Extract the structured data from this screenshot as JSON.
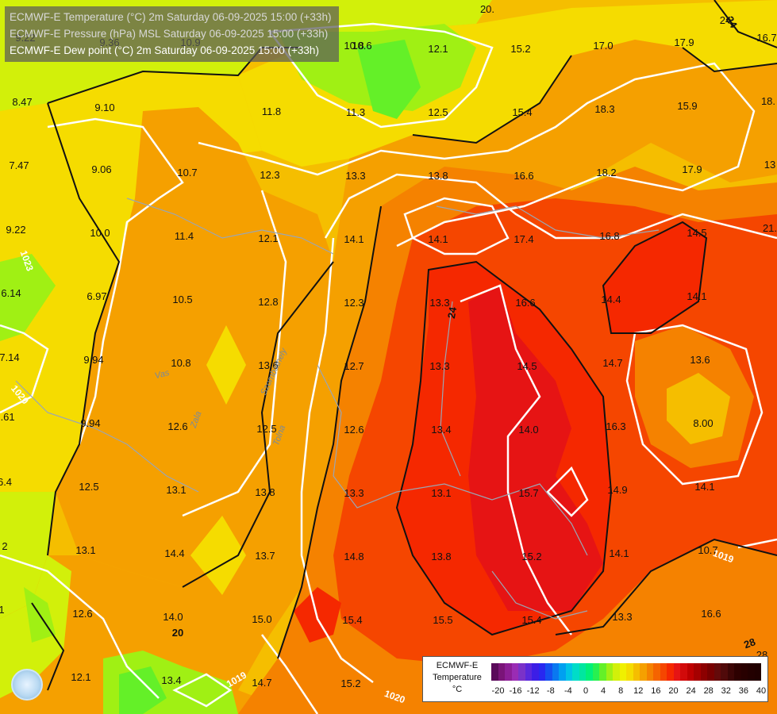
{
  "header": {
    "line1": "ECMWF-E Temperature (°C) 2m Saturday 06-09-2025 15:00 (+33h)",
    "line2": "ECMWF-E Pressure (hPa) MSL Saturday 06-09-2025 15:00 (+33h)",
    "line3": "ECMWF-E Dew point (°C) 2m Saturday 06-09-2025 15:00 (+33h)"
  },
  "legend": {
    "title_line1": "ECMWF-E",
    "title_line2": "Temperature",
    "title_line3": "°C",
    "colors": [
      "#5a0a5a",
      "#7a1478",
      "#8c1e96",
      "#9a2cb4",
      "#7a32c8",
      "#5a28dc",
      "#3c1ee6",
      "#2828f0",
      "#1450f0",
      "#0a78f0",
      "#00a0f0",
      "#00c3e6",
      "#00dcc8",
      "#00e6a0",
      "#00f078",
      "#28f050",
      "#64f028",
      "#a0f014",
      "#d2f00a",
      "#f0f000",
      "#f5dc00",
      "#f5be00",
      "#f5a000",
      "#f58200",
      "#f56400",
      "#f54600",
      "#f52800",
      "#e61414",
      "#d20a0a",
      "#be0000",
      "#a50000",
      "#8c0000",
      "#780000",
      "#640a0a",
      "#500a0a",
      "#3c0505",
      "#2d0000",
      "#280000",
      "#230000",
      "#200000"
    ],
    "ticks": [
      "-20",
      "-16",
      "-12",
      "-8",
      "-4",
      "0",
      "4",
      "8",
      "12",
      "16",
      "20",
      "24",
      "28",
      "32",
      "36",
      "40"
    ]
  },
  "dewpoint_labels": [
    "20.",
    "9.22",
    "8.47",
    "7.47",
    "9.22",
    "6.14",
    "7.14",
    "6.61",
    "6.4",
    "2",
    "1",
    "9.10",
    "9.06",
    "10.0",
    "6.97",
    "9.94",
    "9.94",
    "12.5",
    "13.1",
    "12.6",
    "12.1",
    "9.36",
    "10.9",
    "10.7",
    "11.4",
    "10.5",
    "10.8",
    "12.6",
    "13.1",
    "14.4",
    "14.0",
    "13.4",
    "11.8",
    "12.3",
    "12.1",
    "12.8",
    "13.6",
    "12.5",
    "13.8",
    "13.7",
    "15.0",
    "14.7",
    "10.8",
    "11.3",
    "13.3",
    "14.1",
    "12.3",
    "12.7",
    "12.6",
    "13.3",
    "14.8",
    "15.4",
    "15.2",
    "10.6",
    "12.1",
    "12.5",
    "13.8",
    "14.1",
    "13.3",
    "13.3",
    "13.4",
    "13.1",
    "13.8",
    "15.5",
    "15.2",
    "15.4",
    "16.6",
    "17.4",
    "16.6",
    "14.5",
    "14.0",
    "15.7",
    "15.2",
    "15.4",
    "17.0",
    "18.3",
    "18.2",
    "16.8",
    "14.4",
    "14.7",
    "16.3",
    "14.9",
    "14.1",
    "13.3",
    "17.9",
    "15.9",
    "17.9",
    "14.5",
    "14.1",
    "13.6",
    "8.00",
    "14.1",
    "10.7",
    "16.6",
    "16.7",
    "18.",
    "13",
    "21.",
    "28",
    "24"
  ],
  "isobar_labels": [
    "1023",
    "1020",
    "1019",
    "1021",
    "1020",
    "1019"
  ],
  "isotherm_labels": [
    "20",
    "24",
    "28",
    "24"
  ],
  "river_labels": [
    "Vas",
    "Szombathely",
    "Zala",
    "Tolna"
  ],
  "colors": {
    "orange": "#f5a000",
    "dark_orange": "#f58200",
    "red": "#f52800",
    "yellow": "#f5dc00",
    "lime": "#d2f00a",
    "green": "#64f028"
  }
}
